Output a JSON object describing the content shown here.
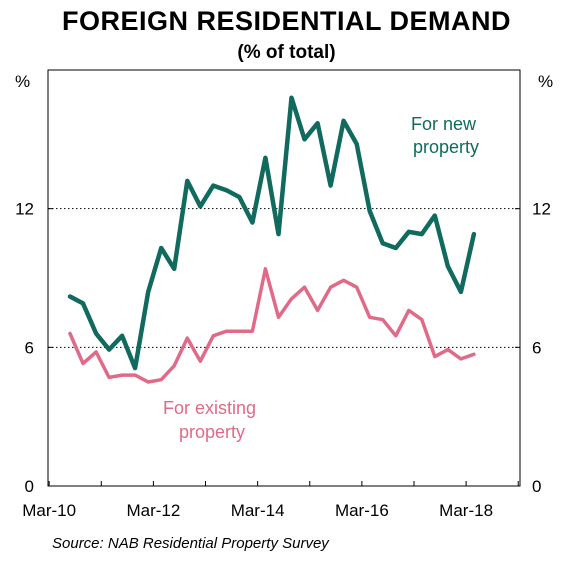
{
  "chart_data": {
    "type": "line",
    "title": "FOREIGN RESIDENTIAL DEMAND",
    "subtitle": "(% of total)",
    "y_unit_label": "%",
    "ylim": [
      0,
      18
    ],
    "y_ticks": [
      0,
      6,
      12
    ],
    "x_ticks": [
      "Mar-10",
      "Mar-12",
      "Mar-14",
      "Mar-16",
      "Mar-18"
    ],
    "x_period": "quarterly",
    "grid": "dotted horizontal at 6 and 12",
    "colors": {
      "new": "#106B5E",
      "existing": "#E06A87"
    },
    "series": [
      {
        "name": "For new property",
        "label_lines": [
          "For new",
          "property"
        ],
        "color": "#106B5E",
        "values": [
          8.2,
          7.9,
          6.6,
          5.9,
          6.5,
          5.1,
          8.4,
          10.3,
          9.4,
          13.2,
          12.1,
          13.0,
          12.8,
          12.5,
          11.4,
          14.2,
          10.9,
          16.8,
          15.0,
          15.7,
          13.0,
          15.8,
          14.8,
          11.9,
          10.5,
          10.3,
          11.0,
          10.9,
          11.7,
          9.5,
          8.4,
          10.9
        ]
      },
      {
        "name": "For existing property",
        "label_lines": [
          "For existing",
          "property"
        ],
        "color": "#E06A87",
        "values": [
          6.6,
          5.3,
          5.8,
          4.7,
          4.8,
          4.8,
          4.5,
          4.6,
          5.2,
          6.4,
          5.4,
          6.5,
          6.7,
          6.7,
          6.7,
          9.4,
          7.3,
          8.1,
          8.6,
          7.6,
          8.6,
          8.9,
          8.6,
          7.3,
          7.2,
          6.5,
          7.6,
          7.2,
          5.6,
          5.9,
          5.5,
          5.7
        ]
      }
    ]
  },
  "source": "Source: NAB Residential Property Survey"
}
